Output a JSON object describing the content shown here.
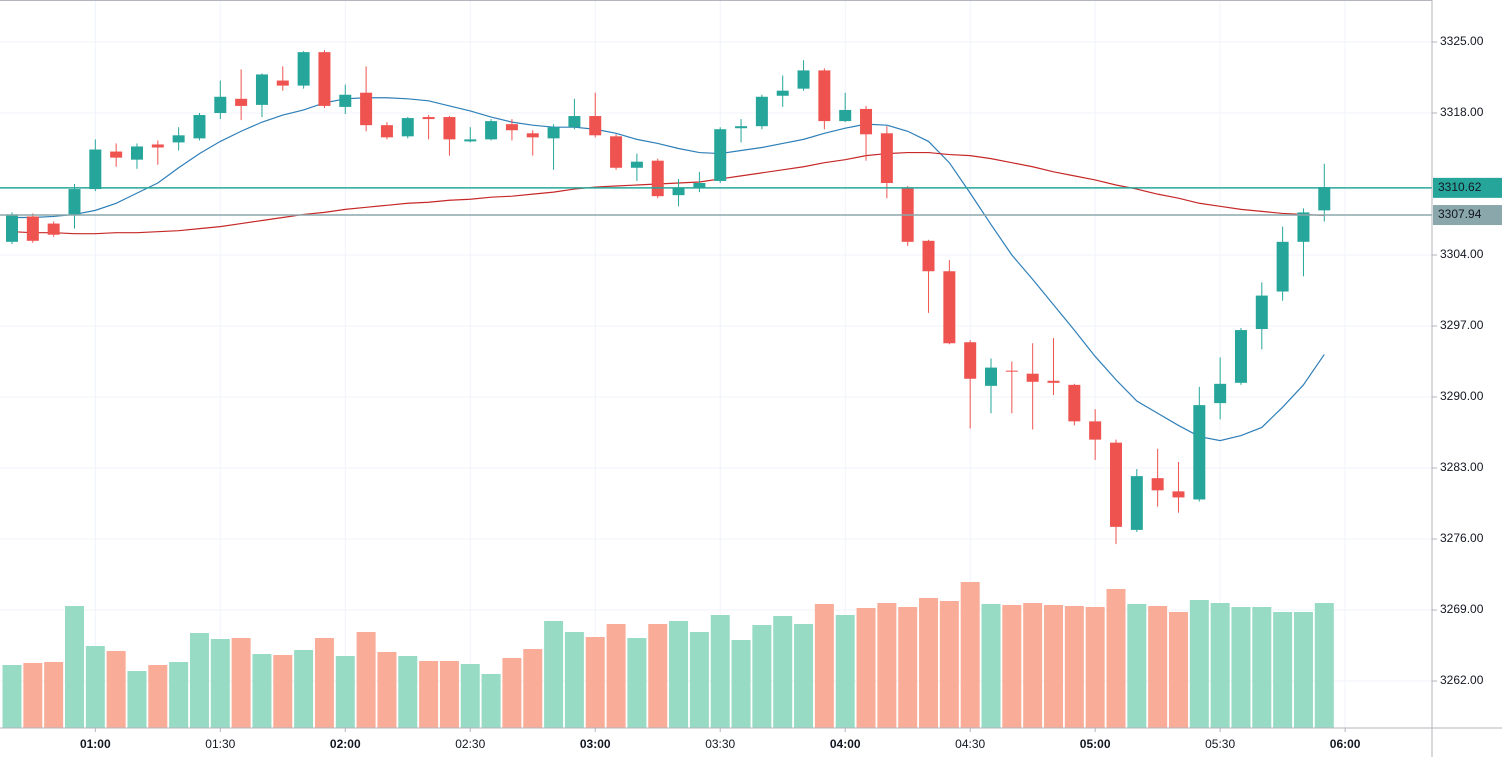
{
  "chart_data": {
    "type": "candlestick",
    "categories": [
      null,
      null,
      null,
      null,
      "01:00",
      null,
      null,
      null,
      null,
      null,
      "01:30",
      null,
      null,
      null,
      null,
      null,
      "02:00",
      null,
      null,
      null,
      null,
      null,
      "02:30",
      null,
      null,
      null,
      null,
      null,
      "03:00",
      null,
      null,
      null,
      null,
      null,
      "03:30",
      null,
      null,
      null,
      null,
      null,
      "04:00",
      null,
      null,
      null,
      null,
      null,
      "04:30",
      null,
      null,
      null,
      null,
      null,
      "05:00",
      null,
      null,
      null,
      null,
      null,
      "05:30",
      null,
      null,
      null,
      null,
      null,
      "06:00"
    ],
    "open": [
      3305.3,
      3307.8,
      3307.1,
      3308.0,
      3310.5,
      3314.2,
      3313.4,
      3314.9,
      3315.1,
      3315.5,
      3318.0,
      3319.4,
      3318.8,
      3321.2,
      3320.7,
      3324.0,
      3318.6,
      3320.0,
      3316.8,
      3315.7,
      3317.6,
      3317.6,
      3315.2,
      3315.4,
      3316.9,
      3316.0,
      3315.5,
      3316.6,
      3317.7,
      3315.7,
      3312.6,
      3313.3,
      3309.9,
      3310.6,
      3311.3,
      3316.5,
      3316.7,
      3319.7,
      3320.4,
      3322.2,
      3317.2,
      3318.4,
      3316.0,
      3310.6,
      3305.4,
      3302.4,
      3295.4,
      3291.1,
      3292.6,
      3292.3,
      3291.6,
      3291.2,
      3287.6,
      3285.5,
      3276.9,
      3282.0,
      3280.7,
      3279.9,
      3289.4,
      3291.4,
      3296.7,
      3300.4,
      3305.3,
      3308.4,
      null
    ],
    "high": [
      3308.2,
      3308.1,
      3307.3,
      3311.0,
      3315.4,
      3315.0,
      3315.0,
      3315.3,
      3316.6,
      3318.0,
      3321.2,
      3322.3,
      3321.9,
      3322.6,
      3324.1,
      3324.2,
      3320.8,
      3322.6,
      3317.1,
      3317.6,
      3317.8,
      3317.7,
      3316.6,
      3317.4,
      3317.4,
      3316.3,
      3316.9,
      3319.4,
      3320.0,
      3315.9,
      3314.0,
      3313.5,
      3311.5,
      3312.2,
      3316.6,
      3317.4,
      3319.8,
      3321.7,
      3323.2,
      3322.4,
      3320.0,
      3318.7,
      3316.7,
      3310.8,
      3305.5,
      3303.5,
      3295.6,
      3293.8,
      3293.5,
      3295.3,
      3295.8,
      3291.3,
      3288.8,
      3285.8,
      3282.9,
      3284.9,
      3283.6,
      3291.0,
      3293.9,
      3296.8,
      3301.3,
      3306.8,
      3308.6,
      3313.0,
      null
    ],
    "low": [
      3305.1,
      3305.2,
      3305.8,
      3306.6,
      3310.3,
      3312.7,
      3312.5,
      3312.9,
      3314.3,
      3315.3,
      3317.4,
      3317.3,
      3317.6,
      3320.2,
      3320.4,
      3318.5,
      3317.9,
      3316.2,
      3315.4,
      3315.5,
      3315.4,
      3313.8,
      3315.1,
      3315.3,
      3315.3,
      3313.8,
      3312.4,
      3316.4,
      3315.6,
      3312.4,
      3311.3,
      3309.6,
      3308.8,
      3310.2,
      3311.1,
      3315.1,
      3316.4,
      3318.6,
      3320.2,
      3316.4,
      3317.1,
      3313.3,
      3309.6,
      3304.9,
      3298.3,
      3295.2,
      3286.9,
      3288.4,
      3288.4,
      3286.8,
      3290.2,
      3287.2,
      3283.8,
      3275.5,
      3276.7,
      3279.2,
      3278.6,
      3279.7,
      3287.8,
      3291.2,
      3294.7,
      3299.5,
      3301.9,
      3307.3,
      null
    ],
    "close": [
      3308.0,
      3305.4,
      3306.0,
      3310.5,
      3314.4,
      3313.6,
      3314.7,
      3314.6,
      3315.8,
      3317.8,
      3319.6,
      3318.7,
      3321.8,
      3320.7,
      3324.0,
      3318.7,
      3319.8,
      3316.8,
      3315.6,
      3317.5,
      3317.4,
      3315.4,
      3315.4,
      3317.2,
      3316.3,
      3315.6,
      3316.6,
      3317.7,
      3315.8,
      3312.6,
      3313.2,
      3309.8,
      3310.6,
      3311.1,
      3316.4,
      3316.7,
      3319.6,
      3320.2,
      3322.2,
      3317.2,
      3318.3,
      3315.9,
      3311.1,
      3305.3,
      3302.4,
      3295.3,
      3291.8,
      3292.9,
      3292.5,
      3291.5,
      3291.4,
      3287.6,
      3285.8,
      3277.2,
      3282.2,
      3280.8,
      3280.1,
      3289.2,
      3291.3,
      3296.6,
      3300.0,
      3305.3,
      3308.2,
      3310.7,
      null
    ],
    "volume": [
      63,
      65,
      66,
      122,
      82,
      77,
      57,
      63,
      66,
      95,
      89,
      90,
      74,
      73,
      78,
      90,
      72,
      96,
      76,
      72,
      67,
      67,
      64,
      54,
      70,
      79,
      107,
      96,
      91,
      104,
      90,
      104,
      107,
      96,
      113,
      88,
      103,
      112,
      104,
      124,
      113,
      120,
      125,
      121,
      130,
      127,
      146,
      124,
      123,
      125,
      123,
      122,
      121,
      139,
      124,
      122,
      116,
      128,
      125,
      121,
      121,
      116,
      116,
      125,
      null
    ],
    "up_color": "#26a69a",
    "down_color": "#ef5350",
    "volume_up_color": "#97dbc4",
    "volume_down_color": "#f9ad98",
    "series": [
      {
        "color": "#2e7fb8",
        "values": [
          3307.7,
          3307.7,
          3307.8,
          3308.0,
          3308.4,
          3309.1,
          3310.1,
          3311.1,
          3312.6,
          3314.0,
          3315.2,
          3316.2,
          3317.1,
          3317.8,
          3318.3,
          3319.0,
          3319.4,
          3319.5,
          3319.5,
          3319.4,
          3319.2,
          3318.7,
          3318.2,
          3317.6,
          3317.1,
          3316.8,
          3316.6,
          3316.6,
          3316.4,
          3316.0,
          3315.4,
          3315.0,
          3314.5,
          3314.1,
          3314.0,
          3314.3,
          3314.6,
          3315.0,
          3315.4,
          3316.0,
          3316.5,
          3316.9,
          3316.8,
          3316.2,
          3315.2,
          3313.1,
          3310.1,
          3307.0,
          3304.0,
          3301.6,
          3299.1,
          3296.6,
          3294.0,
          3291.7,
          3289.6,
          3288.4,
          3287.2,
          3286.1,
          3285.7,
          3286.2,
          3287.0,
          3289.0,
          3291.2,
          3294.2,
          null
        ]
      },
      {
        "color": "#c62828",
        "values": [
          3306.3,
          3306.2,
          3306.2,
          3306.1,
          3306.1,
          3306.2,
          3306.2,
          3306.3,
          3306.4,
          3306.6,
          3306.8,
          3307.1,
          3307.4,
          3307.7,
          3308.0,
          3308.2,
          3308.5,
          3308.7,
          3308.9,
          3309.1,
          3309.2,
          3309.4,
          3309.5,
          3309.7,
          3309.8,
          3310.0,
          3310.2,
          3310.5,
          3310.7,
          3310.8,
          3310.9,
          3311.0,
          3311.1,
          3311.2,
          3311.5,
          3311.8,
          3312.1,
          3312.4,
          3312.7,
          3313.1,
          3313.4,
          3313.8,
          3314.0,
          3314.1,
          3314.1,
          3313.9,
          3313.8,
          3313.5,
          3313.1,
          3312.7,
          3312.2,
          3311.8,
          3311.4,
          3310.9,
          3310.5,
          3310.0,
          3309.6,
          3309.1,
          3308.8,
          3308.5,
          3308.3,
          3308.1,
          3308.0,
          3307.9,
          null
        ]
      }
    ],
    "price_lines": [
      {
        "value": 3310.62,
        "color": "#26a69a"
      },
      {
        "value": 3307.94,
        "color": "#8aa7ab"
      }
    ],
    "ylim": [
      3257.37,
      3329.14
    ],
    "yticks": [
      {
        "value": 3262,
        "label": "3262.00"
      },
      {
        "value": 3269,
        "label": "3269.00"
      },
      {
        "value": 3276,
        "label": "3276.00"
      },
      {
        "value": 3283,
        "label": "3283.00"
      },
      {
        "value": 3290,
        "label": "3290.00"
      },
      {
        "value": 3297,
        "label": "3297.00"
      },
      {
        "value": 3304,
        "label": "3304.00"
      },
      {
        "value": 3318,
        "label": "3318.00"
      },
      {
        "value": 3325,
        "label": "3325.00"
      }
    ],
    "grid": true
  }
}
